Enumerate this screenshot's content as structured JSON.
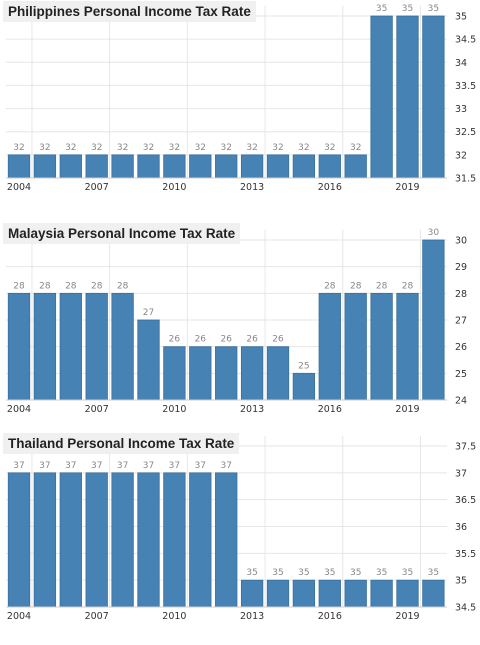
{
  "colors": {
    "bar": "#4682B4",
    "bar_edge": "#3a6f9c",
    "grid": "#e6e6e6",
    "value_label": "#888888",
    "tick_label": "#333333"
  },
  "chart_data": [
    {
      "type": "bar",
      "title": "Philippines Personal Income Tax Rate",
      "xlabel": "",
      "ylabel": "",
      "categories": [
        "2004",
        "2005",
        "2006",
        "2007",
        "2008",
        "2009",
        "2010",
        "2011",
        "2012",
        "2013",
        "2014",
        "2015",
        "2016",
        "2017",
        "2018",
        "2019",
        "2020"
      ],
      "values": [
        32,
        32,
        32,
        32,
        32,
        32,
        32,
        32,
        32,
        32,
        32,
        32,
        32,
        32,
        35,
        35,
        35
      ],
      "ylim": [
        31.5,
        35
      ],
      "yticks": [
        31.5,
        32,
        32.5,
        33,
        33.5,
        34,
        34.5,
        35
      ],
      "ytick_labels": [
        "31.5",
        "32",
        "32.5",
        "33",
        "33.5",
        "34",
        "34.5",
        "35"
      ],
      "xtick_labels": [
        "2004",
        "2007",
        "2010",
        "2013",
        "2016",
        "2019"
      ],
      "grid": true,
      "y_axis_position": "right"
    },
    {
      "type": "bar",
      "title": "Malaysia Personal Income Tax Rate",
      "xlabel": "",
      "ylabel": "",
      "categories": [
        "2004",
        "2005",
        "2006",
        "2007",
        "2008",
        "2009",
        "2010",
        "2011",
        "2012",
        "2013",
        "2014",
        "2015",
        "2016",
        "2017",
        "2018",
        "2019",
        "2020"
      ],
      "values": [
        28,
        28,
        28,
        28,
        28,
        27,
        26,
        26,
        26,
        26,
        26,
        25,
        28,
        28,
        28,
        28,
        30
      ],
      "ylim": [
        24,
        30
      ],
      "yticks": [
        24,
        25,
        26,
        27,
        28,
        29,
        30
      ],
      "ytick_labels": [
        "24",
        "25",
        "26",
        "27",
        "28",
        "29",
        "30"
      ],
      "xtick_labels": [
        "2004",
        "2007",
        "2010",
        "2013",
        "2016",
        "2019"
      ],
      "grid": true,
      "y_axis_position": "right"
    },
    {
      "type": "bar",
      "title": "Thailand Personal Income Tax Rate",
      "xlabel": "",
      "ylabel": "",
      "categories": [
        "2004",
        "2005",
        "2006",
        "2007",
        "2008",
        "2009",
        "2010",
        "2011",
        "2012",
        "2013",
        "2014",
        "2015",
        "2016",
        "2017",
        "2018",
        "2019",
        "2020"
      ],
      "values": [
        37,
        37,
        37,
        37,
        37,
        37,
        37,
        37,
        37,
        35,
        35,
        35,
        35,
        35,
        35,
        35,
        35
      ],
      "ylim": [
        34.5,
        37.5
      ],
      "yticks": [
        34.5,
        35,
        35.5,
        36,
        36.5,
        37,
        37.5
      ],
      "ytick_labels": [
        "34.5",
        "35",
        "35.5",
        "36",
        "36.5",
        "37",
        "37.5"
      ],
      "xtick_labels": [
        "2004",
        "2007",
        "2010",
        "2013",
        "2016",
        "2019"
      ],
      "grid": true,
      "y_axis_position": "right"
    }
  ]
}
